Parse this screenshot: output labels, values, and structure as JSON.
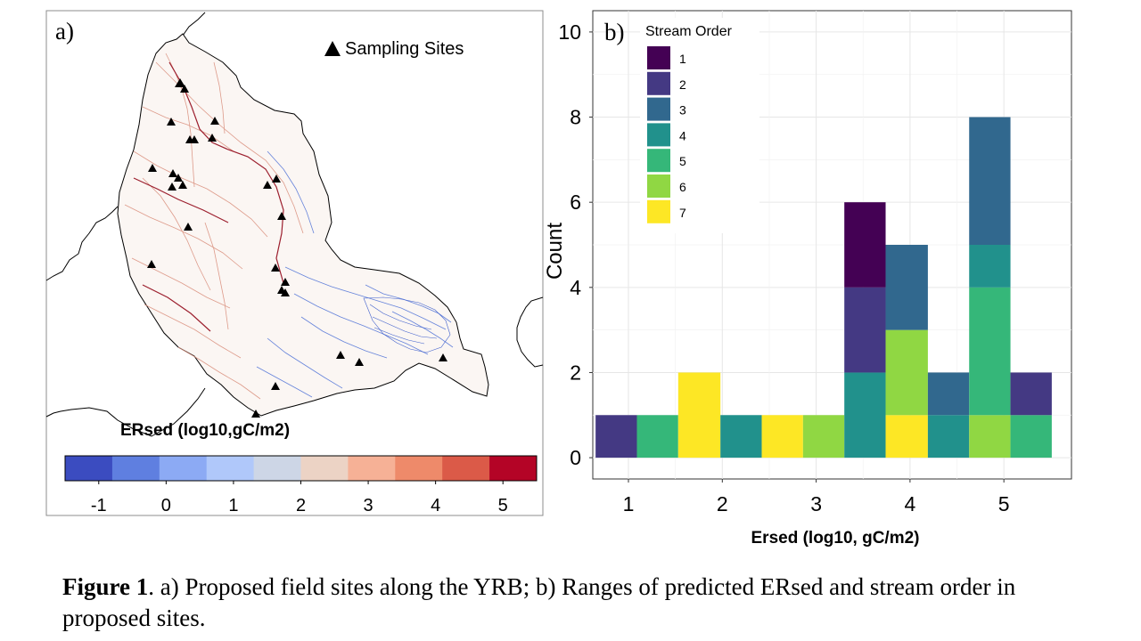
{
  "panel_a": {
    "label": "a)",
    "legend_label": "Sampling Sites",
    "colorbar_title": "ERsed (log10,gC/m2)",
    "colorbar_colors": [
      "#3b4cc0",
      "#5f7fe0",
      "#8caaf4",
      "#b0c8fa",
      "#cdd6e6",
      "#ecd3c5",
      "#f6b196",
      "#ee8a6a",
      "#db5a48",
      "#b40426"
    ],
    "colorbar_ticks": [
      "-1",
      "0",
      "1",
      "2",
      "3",
      "4",
      "5"
    ],
    "colorbar_range": [
      -1.5,
      5.5
    ],
    "colorbar_tick_values": [
      -1,
      0,
      1,
      2,
      3,
      4,
      5
    ]
  },
  "chart_data": {
    "type": "bar",
    "panel_label": "b)",
    "xlabel": "Ersed (log10, gC/m2)",
    "ylabel": "Count",
    "xlim": [
      0.62,
      5.72
    ],
    "ylim": [
      -0.5,
      10.5
    ],
    "x_ticks": [
      1,
      2,
      3,
      4,
      5
    ],
    "x_tick_labels": [
      "1",
      "2",
      "3",
      "4",
      "5"
    ],
    "y_ticks": [
      0,
      2,
      4,
      6,
      8,
      10
    ],
    "y_tick_labels": [
      "0",
      "2",
      "4",
      "6",
      "8",
      "10"
    ],
    "grid": true,
    "legend": {
      "title": "Stream Order",
      "placement": "top-left",
      "entries": [
        "1",
        "2",
        "3",
        "4",
        "5",
        "6",
        "7"
      ]
    },
    "colors": {
      "1": "#440154",
      "2": "#443983",
      "3": "#31688e",
      "4": "#21918c",
      "5": "#35b779",
      "6": "#90d743",
      "7": "#fde725"
    },
    "bins": [
      {
        "x0": 0.65,
        "x1": 1.09,
        "stack": [
          {
            "order": "2",
            "count": 1
          }
        ]
      },
      {
        "x0": 1.09,
        "x1": 1.53,
        "stack": [
          {
            "order": "5",
            "count": 1
          }
        ]
      },
      {
        "x0": 1.53,
        "x1": 1.98,
        "stack": [
          {
            "order": "7",
            "count": 2
          }
        ]
      },
      {
        "x0": 1.98,
        "x1": 2.42,
        "stack": [
          {
            "order": "4",
            "count": 1
          }
        ]
      },
      {
        "x0": 2.42,
        "x1": 2.86,
        "stack": [
          {
            "order": "7",
            "count": 1
          }
        ]
      },
      {
        "x0": 2.86,
        "x1": 3.3,
        "stack": [
          {
            "order": "6",
            "count": 1
          }
        ]
      },
      {
        "x0": 3.3,
        "x1": 3.74,
        "stack": [
          {
            "order": "4",
            "count": 2
          },
          {
            "order": "2",
            "count": 2
          },
          {
            "order": "1",
            "count": 2
          }
        ]
      },
      {
        "x0": 3.74,
        "x1": 4.19,
        "stack": [
          {
            "order": "7",
            "count": 1
          },
          {
            "order": "6",
            "count": 2
          },
          {
            "order": "3",
            "count": 2
          }
        ]
      },
      {
        "x0": 4.19,
        "x1": 4.63,
        "stack": [
          {
            "order": "4",
            "count": 1
          },
          {
            "order": "3",
            "count": 1
          }
        ]
      },
      {
        "x0": 4.63,
        "x1": 5.07,
        "stack": [
          {
            "order": "6",
            "count": 1
          },
          {
            "order": "5",
            "count": 3
          },
          {
            "order": "4",
            "count": 1
          },
          {
            "order": "3",
            "count": 3
          }
        ]
      },
      {
        "x0": 5.07,
        "x1": 5.51,
        "stack": [
          {
            "order": "5",
            "count": 1
          },
          {
            "order": "2",
            "count": 1
          }
        ]
      }
    ]
  },
  "caption": {
    "label": "Figure 1",
    "text": ". a) Proposed field sites along the YRB; b) Ranges of predicted ERsed and stream order in proposed sites."
  }
}
